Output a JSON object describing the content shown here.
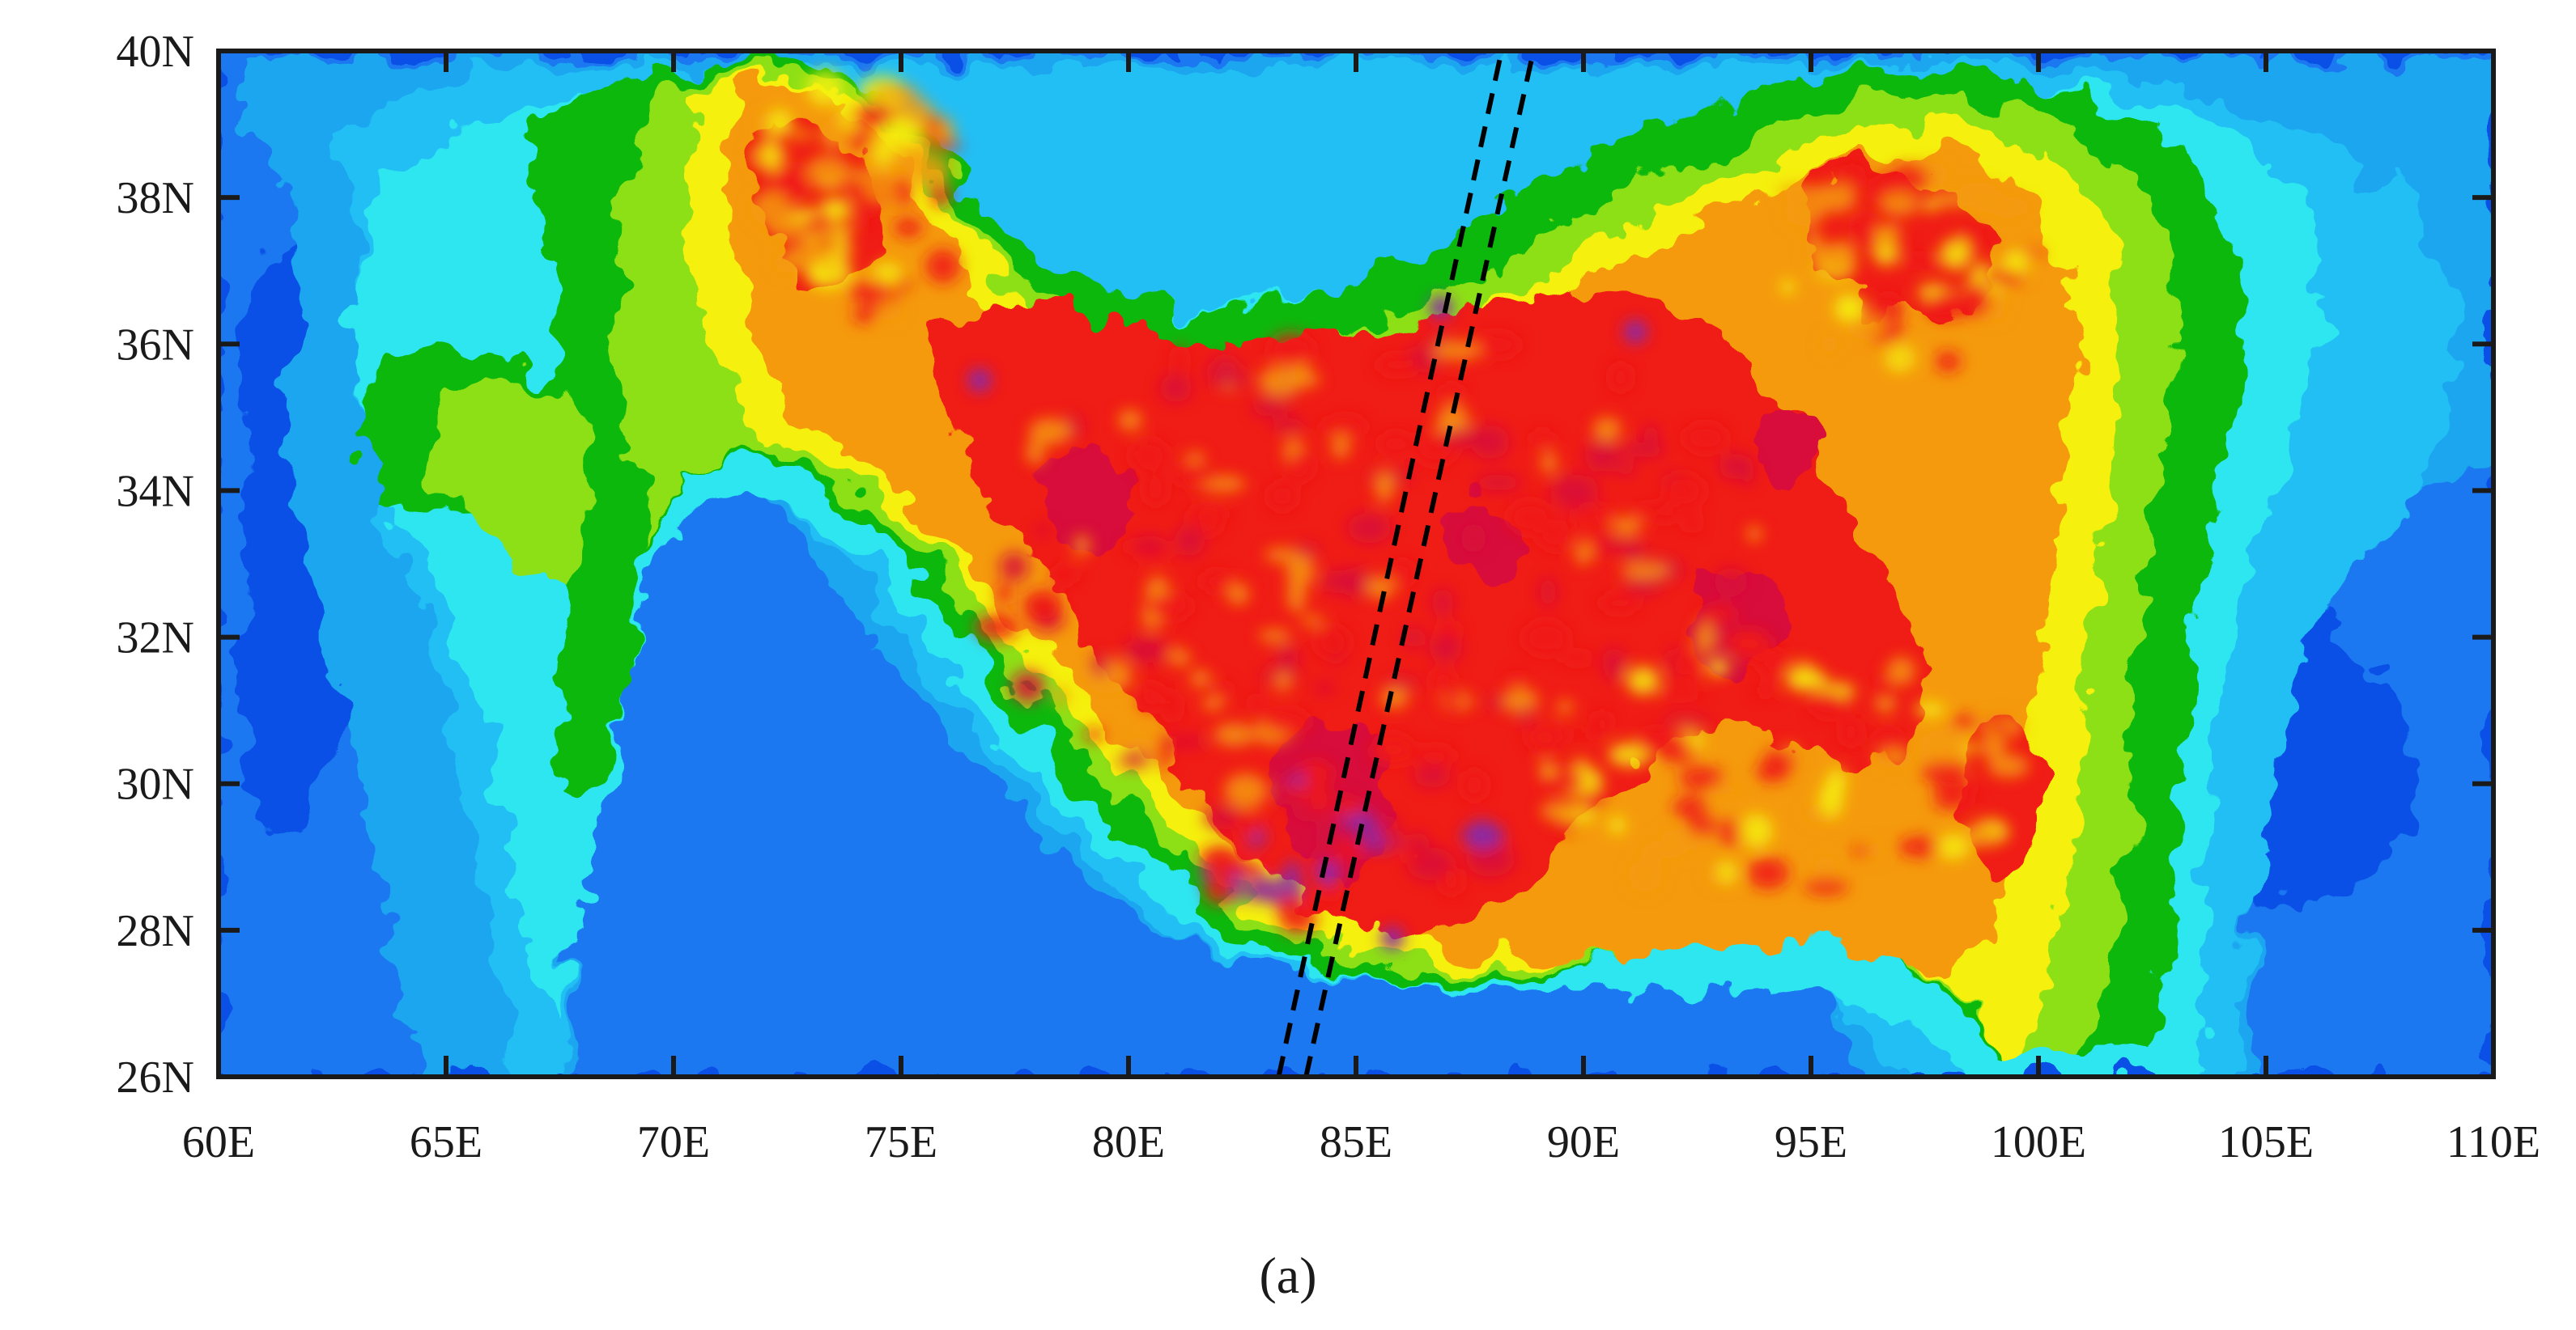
{
  "map": {
    "type": "contour-map",
    "caption": "(a)",
    "lon_range": [
      60,
      110
    ],
    "lat_range": [
      26,
      40
    ],
    "x_ticks": [
      {
        "value": 60,
        "label": "60E"
      },
      {
        "value": 65,
        "label": "65E"
      },
      {
        "value": 70,
        "label": "70E"
      },
      {
        "value": 75,
        "label": "75E"
      },
      {
        "value": 80,
        "label": "80E"
      },
      {
        "value": 85,
        "label": "85E"
      },
      {
        "value": 90,
        "label": "90E"
      },
      {
        "value": 95,
        "label": "95E"
      },
      {
        "value": 100,
        "label": "100E"
      },
      {
        "value": 105,
        "label": "105E"
      },
      {
        "value": 110,
        "label": "110E"
      }
    ],
    "y_ticks": [
      {
        "value": 26,
        "label": "26N"
      },
      {
        "value": 28,
        "label": "28N"
      },
      {
        "value": 30,
        "label": "30N"
      },
      {
        "value": 32,
        "label": "32N"
      },
      {
        "value": 34,
        "label": "34N"
      },
      {
        "value": 36,
        "label": "36N"
      },
      {
        "value": 38,
        "label": "38N"
      },
      {
        "value": 40,
        "label": "40N"
      }
    ],
    "colors": {
      "deep_blue": "#0a50e6",
      "blue": "#1a78f0",
      "sky": "#1aa6f0",
      "light_sky": "#22bff5",
      "cyan": "#2ee6f0",
      "green": "#0cb80c",
      "light_green": "#8ee014",
      "yellow": "#f5f010",
      "orange": "#f59a10",
      "red": "#f01a14",
      "crimson": "#d8103a",
      "purple": "#8a2aa8"
    },
    "transect": {
      "style": "dashed",
      "color": "#000000",
      "line_1": [
        [
          83.3,
          26.0
        ],
        [
          88.2,
          40.0
        ]
      ],
      "line_2": [
        [
          83.9,
          26.0
        ],
        [
          88.9,
          40.0
        ]
      ]
    }
  }
}
